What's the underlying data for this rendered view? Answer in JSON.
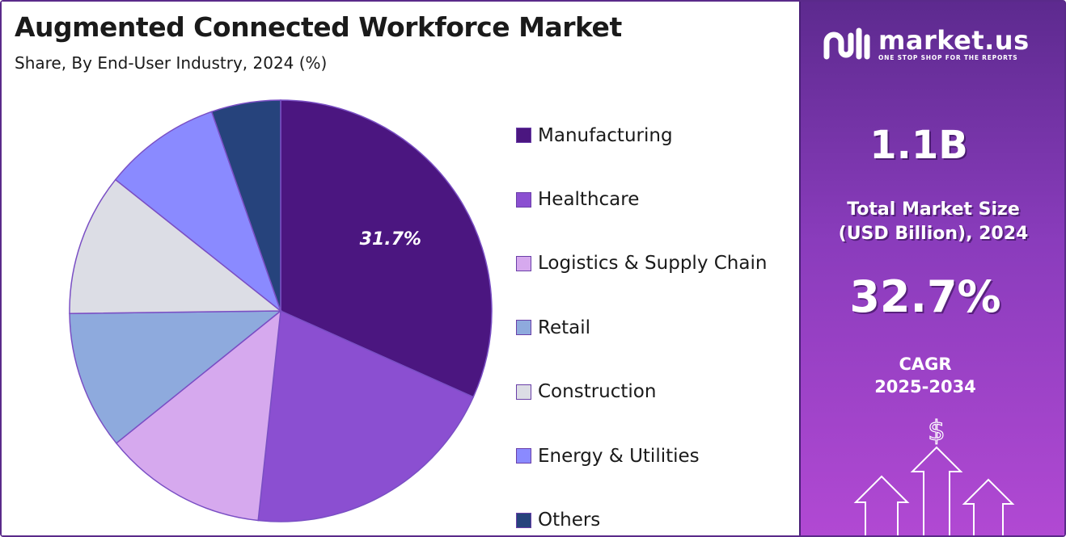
{
  "header": {
    "title": "Augmented Connected Workforce Market",
    "subtitle": "Share, By End-User Industry, 2024 (%)"
  },
  "chart_data": {
    "type": "pie",
    "title": "Augmented Connected Workforce Market",
    "subtitle": "Share, By End-User Industry, 2024 (%)",
    "legend_position": "right",
    "slices": [
      {
        "label": "Manufacturing",
        "value": 31.7,
        "color": "#4b1680",
        "show_label": true
      },
      {
        "label": "Healthcare",
        "value": 20.0,
        "color": "#8b4fd1",
        "show_label": false
      },
      {
        "label": "Logistics & Supply Chain",
        "value": 12.5,
        "color": "#d6a9ee",
        "show_label": false
      },
      {
        "label": "Retail",
        "value": 10.6,
        "color": "#8eaadd",
        "show_label": false
      },
      {
        "label": "Construction",
        "value": 10.9,
        "color": "#dcdde5",
        "show_label": false
      },
      {
        "label": "Energy & Utilities",
        "value": 9.0,
        "color": "#8a8aff",
        "show_label": false
      },
      {
        "label": "Others",
        "value": 5.3,
        "color": "#26437c",
        "show_label": false
      }
    ],
    "value_label_suffix": "%"
  },
  "sidebar": {
    "brand_name": "market.us",
    "brand_tagline": "ONE STOP SHOP FOR THE REPORTS",
    "market_size_value": "1.1B",
    "market_size_label_line1": "Total Market Size",
    "market_size_label_line2": "(USD Billion), 2024",
    "cagr_value": "32.7%",
    "cagr_label_line1": "CAGR",
    "cagr_label_line2": "2025-2034",
    "currency_symbol": "$"
  }
}
